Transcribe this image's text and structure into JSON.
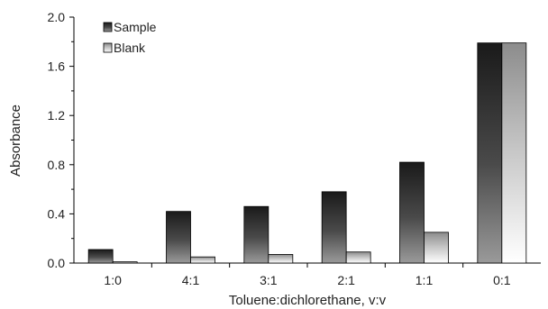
{
  "chart_data": {
    "type": "bar",
    "title": "",
    "xlabel": "Toluene:dichlorethane, v:v",
    "ylabel": "Absorbance",
    "categories": [
      "1:0",
      "4:1",
      "3:1",
      "2:1",
      "1:1",
      "0:1"
    ],
    "series": [
      {
        "name": "Sample",
        "values": [
          0.11,
          0.42,
          0.46,
          0.58,
          0.82,
          1.79
        ]
      },
      {
        "name": "Blank",
        "values": [
          0.01,
          0.05,
          0.07,
          0.09,
          0.25,
          1.79
        ]
      }
    ],
    "ylim": [
      0,
      2.0
    ],
    "yticks": [
      "0.0",
      "0.4",
      "0.8",
      "1.2",
      "1.6",
      "2.0"
    ],
    "grid": false,
    "legend_position": "top-left",
    "colors": {
      "Sample": "#2b2b2b",
      "Blank": "#e8e8e8",
      "axis": "#000000"
    }
  }
}
